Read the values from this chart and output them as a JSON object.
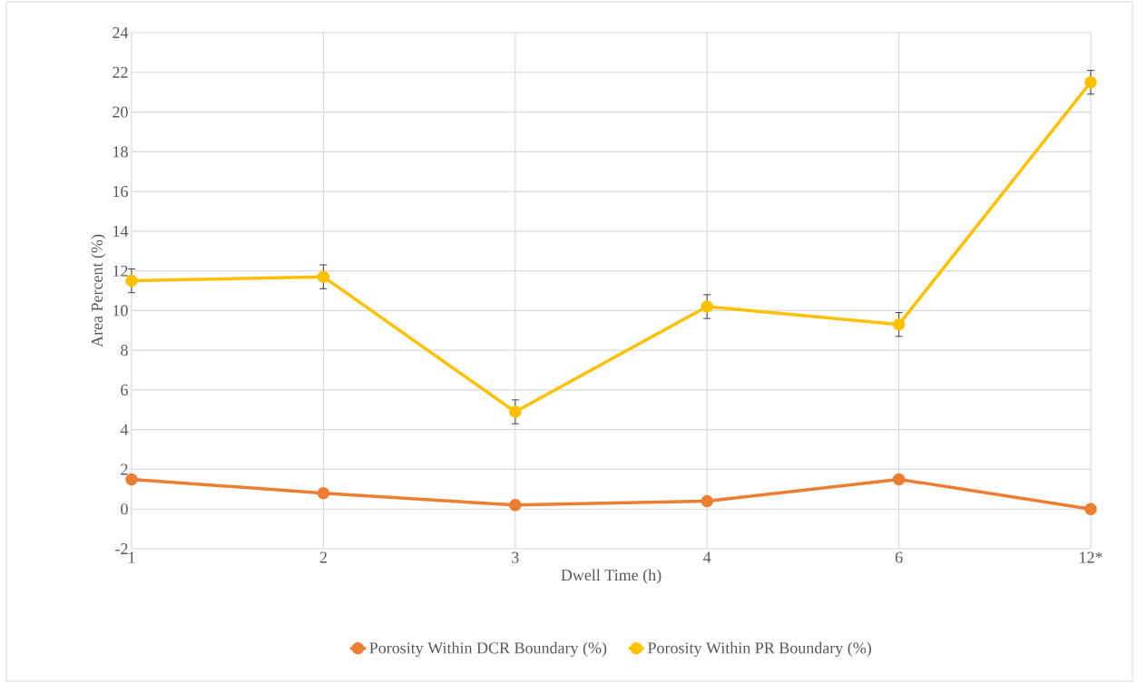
{
  "chart_data": {
    "type": "line",
    "xlabel": "Dwell Time (h)",
    "ylabel": "Area Percent (%)",
    "categories": [
      "1",
      "2",
      "3",
      "4",
      "6",
      "12*"
    ],
    "series": [
      {
        "name": "Porosity Within DCR Boundary (%)",
        "color": "#ed7d31",
        "values": [
          1.5,
          0.8,
          0.2,
          0.4,
          1.5,
          0.0
        ]
      },
      {
        "name": "Porosity Within PR Boundary (%)",
        "color": "#ffc000",
        "values": [
          11.5,
          11.7,
          4.9,
          10.2,
          9.3,
          21.5
        ],
        "errors": [
          0.6,
          0.6,
          0.6,
          0.6,
          0.6,
          0.6
        ]
      }
    ],
    "ylim": [
      -2,
      24
    ],
    "yticks": [
      -2,
      0,
      2,
      4,
      6,
      8,
      10,
      12,
      14,
      16,
      18,
      20,
      22,
      24
    ],
    "grid": true,
    "legend": "bottom",
    "marker": "circle",
    "line_style": "solid"
  }
}
